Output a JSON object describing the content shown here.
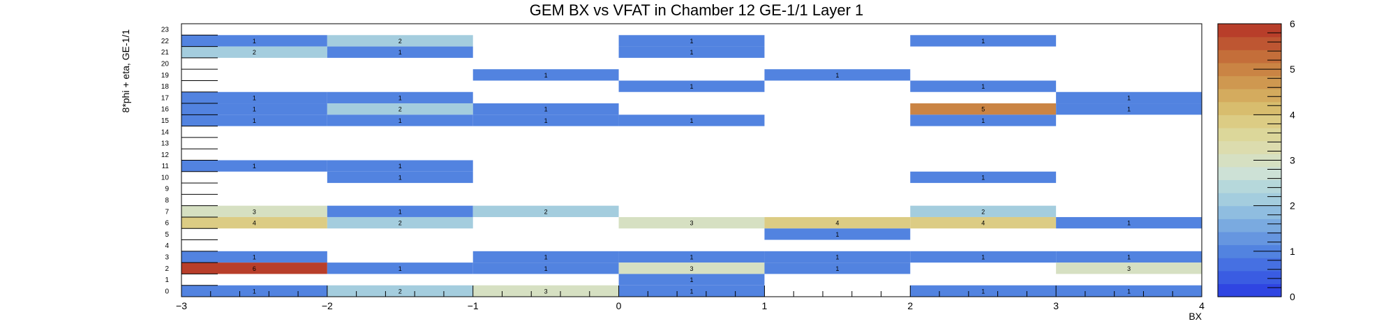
{
  "chart_data": {
    "type": "heatmap",
    "title": "GEM BX vs VFAT in Chamber 12 GE-1/1 Layer 1",
    "xlabel": "BX",
    "ylabel": "8*phi + eta, GE-1/1",
    "xlim": [
      -3,
      4
    ],
    "ylim": [
      0,
      24
    ],
    "x_ticks": [
      -3,
      -2,
      -1,
      0,
      1,
      2,
      3,
      4
    ],
    "y_ticks": [
      0,
      1,
      2,
      3,
      4,
      5,
      6,
      7,
      8,
      9,
      10,
      11,
      12,
      13,
      14,
      15,
      16,
      17,
      18,
      19,
      20,
      21,
      22,
      23
    ],
    "x_bins": [
      [
        -3,
        -2
      ],
      [
        -2,
        -1
      ],
      [
        -1,
        0
      ],
      [
        0,
        1
      ],
      [
        1,
        2
      ],
      [
        2,
        3
      ],
      [
        3,
        4
      ]
    ],
    "colorbar": {
      "min": 0,
      "max": 6,
      "ticks": [
        0,
        1,
        2,
        3,
        4,
        5,
        6
      ]
    },
    "cells": [
      {
        "x": 0,
        "y": 22,
        "v": 1
      },
      {
        "x": 1,
        "y": 22,
        "v": 2
      },
      {
        "x": 3,
        "y": 22,
        "v": 1
      },
      {
        "x": 5,
        "y": 22,
        "v": 1
      },
      {
        "x": 0,
        "y": 21,
        "v": 2
      },
      {
        "x": 1,
        "y": 21,
        "v": 1
      },
      {
        "x": 3,
        "y": 21,
        "v": 1
      },
      {
        "x": 2,
        "y": 19,
        "v": 1
      },
      {
        "x": 4,
        "y": 19,
        "v": 1
      },
      {
        "x": 3,
        "y": 18,
        "v": 1
      },
      {
        "x": 5,
        "y": 18,
        "v": 1
      },
      {
        "x": 0,
        "y": 17,
        "v": 1
      },
      {
        "x": 1,
        "y": 17,
        "v": 1
      },
      {
        "x": 6,
        "y": 17,
        "v": 1
      },
      {
        "x": 0,
        "y": 16,
        "v": 1
      },
      {
        "x": 1,
        "y": 16,
        "v": 2
      },
      {
        "x": 2,
        "y": 16,
        "v": 1
      },
      {
        "x": 5,
        "y": 16,
        "v": 5
      },
      {
        "x": 6,
        "y": 16,
        "v": 1
      },
      {
        "x": 0,
        "y": 15,
        "v": 1
      },
      {
        "x": 1,
        "y": 15,
        "v": 1
      },
      {
        "x": 2,
        "y": 15,
        "v": 1
      },
      {
        "x": 3,
        "y": 15,
        "v": 1
      },
      {
        "x": 5,
        "y": 15,
        "v": 1
      },
      {
        "x": 0,
        "y": 11,
        "v": 1
      },
      {
        "x": 1,
        "y": 11,
        "v": 1
      },
      {
        "x": 1,
        "y": 10,
        "v": 1
      },
      {
        "x": 5,
        "y": 10,
        "v": 1
      },
      {
        "x": 0,
        "y": 7,
        "v": 3
      },
      {
        "x": 1,
        "y": 7,
        "v": 1
      },
      {
        "x": 2,
        "y": 7,
        "v": 2
      },
      {
        "x": 5,
        "y": 7,
        "v": 2
      },
      {
        "x": 0,
        "y": 6,
        "v": 4
      },
      {
        "x": 1,
        "y": 6,
        "v": 2
      },
      {
        "x": 3,
        "y": 6,
        "v": 3
      },
      {
        "x": 4,
        "y": 6,
        "v": 4
      },
      {
        "x": 5,
        "y": 6,
        "v": 4
      },
      {
        "x": 6,
        "y": 6,
        "v": 1
      },
      {
        "x": 4,
        "y": 5,
        "v": 1
      },
      {
        "x": 0,
        "y": 3,
        "v": 1
      },
      {
        "x": 2,
        "y": 3,
        "v": 1
      },
      {
        "x": 3,
        "y": 3,
        "v": 1
      },
      {
        "x": 4,
        "y": 3,
        "v": 1
      },
      {
        "x": 5,
        "y": 3,
        "v": 1
      },
      {
        "x": 6,
        "y": 3,
        "v": 1
      },
      {
        "x": 0,
        "y": 2,
        "v": 6
      },
      {
        "x": 1,
        "y": 2,
        "v": 1
      },
      {
        "x": 2,
        "y": 2,
        "v": 1
      },
      {
        "x": 3,
        "y": 2,
        "v": 3
      },
      {
        "x": 4,
        "y": 2,
        "v": 1
      },
      {
        "x": 6,
        "y": 2,
        "v": 3
      },
      {
        "x": 3,
        "y": 1,
        "v": 1
      },
      {
        "x": 0,
        "y": 0,
        "v": 1
      },
      {
        "x": 1,
        "y": 0,
        "v": 2
      },
      {
        "x": 2,
        "y": 0,
        "v": 3
      },
      {
        "x": 3,
        "y": 0,
        "v": 1
      },
      {
        "x": 5,
        "y": 0,
        "v": 1
      },
      {
        "x": 6,
        "y": 0,
        "v": 1
      }
    ],
    "palette": [
      "#2f45e2",
      "#3a5ce2",
      "#4670e2",
      "#5283e0",
      "#6696e0",
      "#7aaae0",
      "#8fbde0",
      "#a4cdde",
      "#b6d8db",
      "#cde1d6",
      "#d6e0c2",
      "#dcdcae",
      "#dcd79a",
      "#dccc84",
      "#d8bd6e",
      "#d4ab5e",
      "#cf9850",
      "#ca8444",
      "#c46e3a",
      "#be5632",
      "#b83e2a"
    ]
  }
}
